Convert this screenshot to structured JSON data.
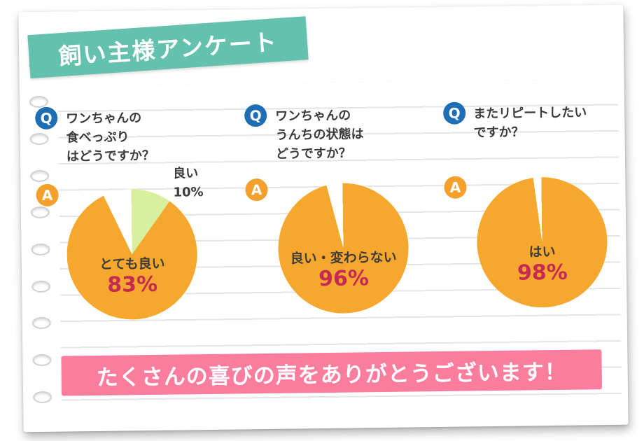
{
  "title_banner": {
    "label": "飼い主様アンケート"
  },
  "questions": [
    {
      "badge": "Q",
      "lines": [
        "ワンちゃんの",
        "食べっぷり",
        "はどうですか？"
      ]
    },
    {
      "badge": "Q",
      "lines": [
        "ワンちゃんの",
        "うんちの状態は",
        "どうですか？"
      ]
    },
    {
      "badge": "Q",
      "lines": [
        "またリピートしたい",
        "ですか？"
      ]
    }
  ],
  "answers": [
    {
      "badge": "A",
      "main_label": "とても良い",
      "main_percent": "83%",
      "callout_label": "良い",
      "callout_percent": "10%"
    },
    {
      "badge": "A",
      "main_label": "良い・変わらない",
      "main_percent": "96%"
    },
    {
      "badge": "A",
      "main_label": "はい",
      "main_percent": "98%"
    }
  ],
  "footer_banner": {
    "label": "たくさんの喜びの声をありがとうございます！"
  },
  "chart_data": [
    {
      "type": "pie",
      "question": "ワンちゃんの食べっぷりはどうですか？",
      "slices": [
        {
          "label": "良い",
          "value": 10,
          "color": "#d9efa0"
        },
        {
          "label": "とても良い",
          "value": 83,
          "color": "#f6a72e"
        },
        {
          "label": "",
          "value": 7,
          "color": "#ffffff"
        }
      ]
    },
    {
      "type": "pie",
      "question": "ワンちゃんのうんちの状態はどうですか？",
      "slices": [
        {
          "label": "良い・変わらない",
          "value": 96,
          "color": "#f6a72e"
        },
        {
          "label": "",
          "value": 4,
          "color": "#ffffff"
        }
      ]
    },
    {
      "type": "pie",
      "question": "またリピートしたいですか？",
      "slices": [
        {
          "label": "はい",
          "value": 98,
          "color": "#f6a72e"
        },
        {
          "label": "",
          "value": 2,
          "color": "#ffffff"
        }
      ]
    }
  ],
  "colors": {
    "pie_main": "#f6a72e",
    "pie_secondary": "#d9efa0",
    "q_badge": "#1d6eb4",
    "a_badge": "#f3a02c",
    "percent_text": "#c62a52",
    "title_banner_bg": "#63c1ae",
    "footer_banner_bg": "#fa7d9e",
    "ruled_line": "#e4e6e6"
  }
}
